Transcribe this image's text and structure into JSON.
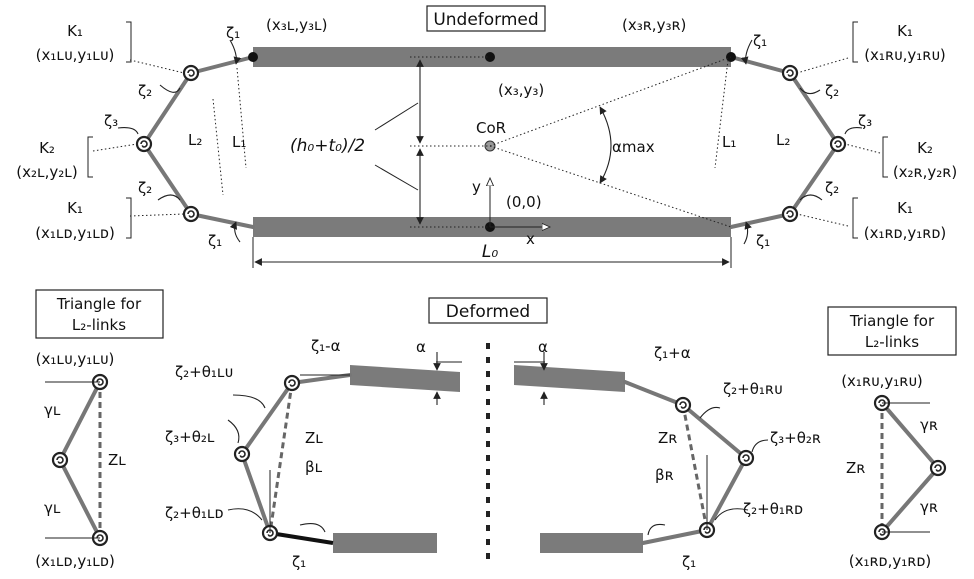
{
  "titles": {
    "undeformed": "Undeformed",
    "deformed": "Deformed",
    "tri_left_1": "Triangle for",
    "tri_left_2": "L₂-links",
    "tri_right_1": "Triangle for",
    "tri_right_2": "L₂-links"
  },
  "labels": {
    "K1": "K₁",
    "K2": "K₂",
    "x1LU": "(x₁ʟᴜ,y₁ʟᴜ)",
    "x2L": "(x₂ʟ,y₂ʟ)",
    "x1LD": "(x₁ʟᴅ,y₁ʟᴅ)",
    "x1RU": "(x₁ʀᴜ,y₁ʀᴜ)",
    "x2R": "(x₂ʀ,y₂ʀ)",
    "x1RD": "(x₁ʀᴅ,y₁ʀᴅ)",
    "x3L": "(x₃ʟ,y₃ʟ)",
    "x3R": "(x₃ʀ,y₃ʀ)",
    "x3": "(x₃,y₃)",
    "zeta1": "ζ₁",
    "zeta2": "ζ₂",
    "zeta3": "ζ₃",
    "L1": "L₁",
    "L2": "L₂",
    "L0": "L₀",
    "h0t0": "(h₀+t₀)/2",
    "CoR": "CoR",
    "amax": "αmax",
    "y": "y",
    "x": "x",
    "origin": "(0,0)",
    "a": "α",
    "z1_minus_a": "ζ₁-α",
    "z1_plus_a": "ζ₁+α",
    "z2_th1LU": "ζ₂+θ₁ʟᴜ",
    "z3_th2L": "ζ₃+θ₂ʟ",
    "z2_th1LD": "ζ₂+θ₁ʟᴅ",
    "z2_th1RU": "ζ₂+θ₁ʀᴜ",
    "z3_th2R": "ζ₃+θ₂ʀ",
    "z2_th1RD": "ζ₂+θ₁ʀᴅ",
    "ZL": "Zʟ",
    "ZR": "Zʀ",
    "betaL": "βʟ",
    "betaR": "βʀ",
    "gammaL": "γʟ",
    "gammaR": "γʀ"
  }
}
